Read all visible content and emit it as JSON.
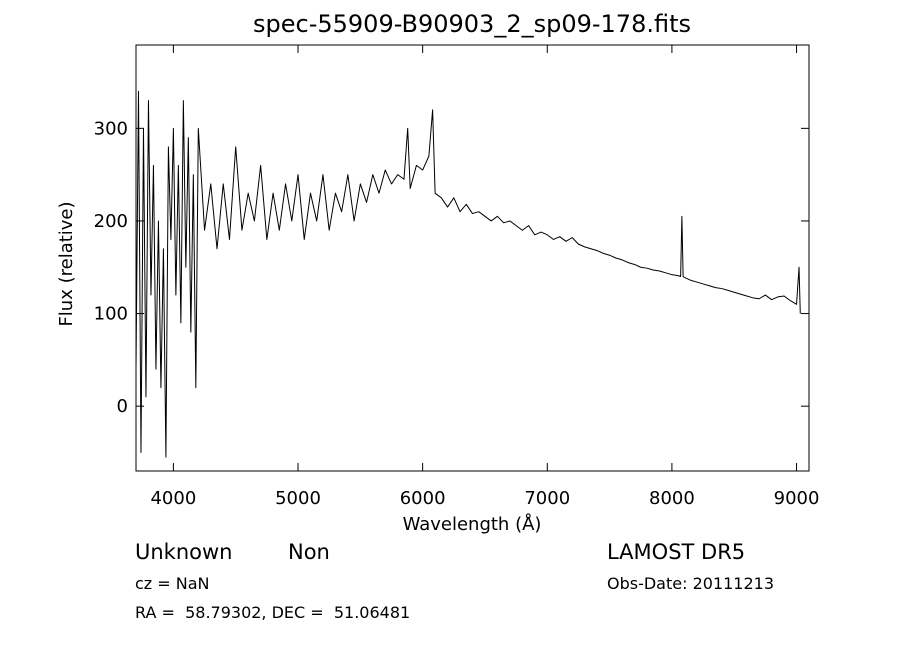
{
  "chart_data": {
    "type": "line",
    "title": "spec-55909-B90903_2_sp09-178.fits",
    "xlabel": "Wavelength (Å)",
    "ylabel": "Flux (relative)",
    "xlim": [
      3700,
      9100
    ],
    "ylim": [
      -70,
      390
    ],
    "xticks": [
      4000,
      5000,
      6000,
      7000,
      8000,
      9000
    ],
    "yticks": [
      0,
      100,
      200,
      300
    ],
    "xtick_labels": [
      "4000",
      "5000",
      "6000",
      "7000",
      "8000",
      "9000"
    ],
    "ytick_labels": [
      "0",
      "100",
      "200",
      "300"
    ],
    "grid": false,
    "legend": "none",
    "series": [
      {
        "x": [
          3700,
          3720,
          3740,
          3760,
          3780,
          3800,
          3820,
          3840,
          3860,
          3880,
          3900,
          3920,
          3940,
          3960,
          3980,
          4000,
          4020,
          4040,
          4060,
          4080,
          4100,
          4120,
          4140,
          4160,
          4180,
          4200,
          4250,
          4300,
          4350,
          4400,
          4450,
          4500,
          4550,
          4600,
          4650,
          4700,
          4750,
          4800,
          4850,
          4900,
          4950,
          5000,
          5050,
          5100,
          5150,
          5200,
          5250,
          5300,
          5350,
          5400,
          5450,
          5500,
          5550,
          5600,
          5650,
          5700,
          5750,
          5800,
          5850,
          5880,
          5900,
          5950,
          6000,
          6050,
          6080,
          6100,
          6150,
          6200,
          6250,
          6300,
          6350,
          6400,
          6450,
          6500,
          6550,
          6600,
          6650,
          6700,
          6750,
          6800,
          6850,
          6900,
          6950,
          7000,
          7050,
          7100,
          7150,
          7200,
          7250,
          7300,
          7350,
          7400,
          7450,
          7500,
          7550,
          7600,
          7650,
          7700,
          7750,
          7800,
          7850,
          7900,
          7950,
          8000,
          8050,
          8070,
          8080,
          8090,
          8100,
          8150,
          8200,
          8250,
          8300,
          8350,
          8400,
          8450,
          8500,
          8550,
          8600,
          8650,
          8700,
          8750,
          8800,
          8850,
          8900,
          8950,
          9000,
          9020,
          9030
        ],
        "y": [
          40,
          340,
          -50,
          300,
          10,
          330,
          120,
          260,
          40,
          200,
          20,
          170,
          -55,
          280,
          180,
          300,
          120,
          260,
          90,
          330,
          150,
          290,
          80,
          250,
          20,
          300,
          190,
          240,
          170,
          240,
          180,
          280,
          190,
          230,
          200,
          260,
          180,
          230,
          190,
          240,
          200,
          250,
          180,
          230,
          200,
          250,
          190,
          230,
          210,
          250,
          200,
          240,
          220,
          250,
          230,
          255,
          240,
          250,
          245,
          300,
          235,
          260,
          255,
          270,
          320,
          230,
          225,
          215,
          225,
          210,
          218,
          208,
          210,
          205,
          200,
          205,
          198,
          200,
          195,
          190,
          195,
          185,
          188,
          185,
          180,
          183,
          178,
          182,
          175,
          172,
          170,
          168,
          165,
          163,
          160,
          158,
          155,
          153,
          150,
          149,
          147,
          146,
          144,
          142,
          141,
          140,
          205,
          140,
          139,
          136,
          134,
          132,
          130,
          128,
          127,
          125,
          123,
          121,
          119,
          117,
          116,
          120,
          115,
          118,
          119,
          114,
          110,
          150,
          100
        ]
      }
    ]
  },
  "info": {
    "object_class": "Unknown",
    "subclass": "Non",
    "cz": "cz = NaN",
    "coords": "RA =  58.79302, DEC =  51.06481",
    "survey": "LAMOST DR5",
    "obs_date": "Obs-Date: 20111213"
  },
  "colors": {
    "line": "#000000",
    "axes": "#000000",
    "background": "#ffffff"
  }
}
